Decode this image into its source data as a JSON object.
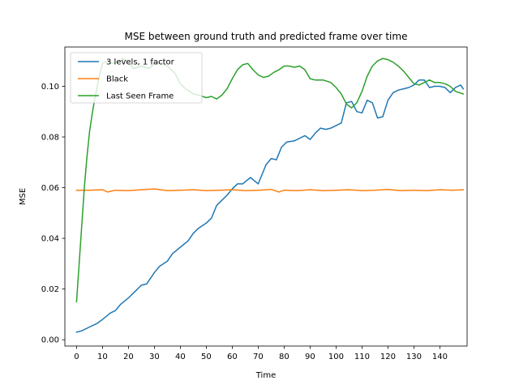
{
  "chart_data": {
    "type": "line",
    "title": "MSE between ground truth and predicted frame over time",
    "xlabel": "Time",
    "ylabel": "MSE",
    "xlim": [
      -4.5,
      150.5
    ],
    "ylim": [
      -0.0025,
      0.1155
    ],
    "xticks": [
      0,
      10,
      20,
      30,
      40,
      50,
      60,
      70,
      80,
      90,
      100,
      110,
      120,
      130,
      140
    ],
    "yticks": [
      0.0,
      0.02,
      0.04,
      0.06,
      0.08,
      0.1
    ],
    "ytick_labels": [
      "0.00",
      "0.02",
      "0.04",
      "0.06",
      "0.08",
      "0.10"
    ],
    "grid": false,
    "legend_position": "upper left",
    "series": [
      {
        "name": "3 levels, 1 factor",
        "color": "#1f77b4",
        "points": [
          [
            0,
            0.003
          ],
          [
            2,
            0.0035
          ],
          [
            5,
            0.005
          ],
          [
            8,
            0.0065
          ],
          [
            10,
            0.008
          ],
          [
            13,
            0.0105
          ],
          [
            15,
            0.0115
          ],
          [
            17,
            0.014
          ],
          [
            20,
            0.0165
          ],
          [
            23,
            0.0195
          ],
          [
            25,
            0.0215
          ],
          [
            27,
            0.022
          ],
          [
            30,
            0.0265
          ],
          [
            32,
            0.029
          ],
          [
            35,
            0.031
          ],
          [
            37,
            0.034
          ],
          [
            40,
            0.0365
          ],
          [
            43,
            0.039
          ],
          [
            45,
            0.042
          ],
          [
            47,
            0.044
          ],
          [
            50,
            0.046
          ],
          [
            52,
            0.048
          ],
          [
            54,
            0.053
          ],
          [
            56,
            0.055
          ],
          [
            58,
            0.057
          ],
          [
            60,
            0.0595
          ],
          [
            62,
            0.0615
          ],
          [
            64,
            0.0615
          ],
          [
            67,
            0.064
          ],
          [
            70,
            0.0615
          ],
          [
            73,
            0.069
          ],
          [
            75,
            0.0715
          ],
          [
            77,
            0.071
          ],
          [
            79,
            0.076
          ],
          [
            81,
            0.078
          ],
          [
            84,
            0.0785
          ],
          [
            86,
            0.0795
          ],
          [
            88,
            0.0805
          ],
          [
            90,
            0.079
          ],
          [
            92,
            0.0815
          ],
          [
            94,
            0.0835
          ],
          [
            96,
            0.083
          ],
          [
            98,
            0.0835
          ],
          [
            100,
            0.0845
          ],
          [
            102,
            0.0855
          ],
          [
            104,
            0.0935
          ],
          [
            106,
            0.094
          ],
          [
            108,
            0.09
          ],
          [
            110,
            0.0895
          ],
          [
            112,
            0.0945
          ],
          [
            114,
            0.0935
          ],
          [
            116,
            0.0875
          ],
          [
            118,
            0.088
          ],
          [
            120,
            0.0945
          ],
          [
            122,
            0.0975
          ],
          [
            124,
            0.0985
          ],
          [
            126,
            0.099
          ],
          [
            128,
            0.0995
          ],
          [
            130,
            0.1005
          ],
          [
            132,
            0.1025
          ],
          [
            134,
            0.1025
          ],
          [
            136,
            0.0995
          ],
          [
            138,
            0.1
          ],
          [
            140,
            0.1
          ],
          [
            142,
            0.0995
          ],
          [
            144,
            0.0975
          ],
          [
            146,
            0.0995
          ],
          [
            148,
            0.1005
          ],
          [
            149,
            0.099
          ]
        ]
      },
      {
        "name": "Black",
        "color": "#ff7f0e",
        "points": [
          [
            0,
            0.059
          ],
          [
            5,
            0.059
          ],
          [
            10,
            0.0592
          ],
          [
            12,
            0.0583
          ],
          [
            15,
            0.059
          ],
          [
            20,
            0.0588
          ],
          [
            25,
            0.0592
          ],
          [
            30,
            0.0595
          ],
          [
            35,
            0.0588
          ],
          [
            40,
            0.059
          ],
          [
            45,
            0.0592
          ],
          [
            50,
            0.0588
          ],
          [
            55,
            0.059
          ],
          [
            60,
            0.0592
          ],
          [
            65,
            0.0588
          ],
          [
            70,
            0.059
          ],
          [
            75,
            0.0593
          ],
          [
            78,
            0.0583
          ],
          [
            80,
            0.059
          ],
          [
            85,
            0.0588
          ],
          [
            90,
            0.0592
          ],
          [
            95,
            0.0588
          ],
          [
            100,
            0.059
          ],
          [
            105,
            0.0592
          ],
          [
            110,
            0.0588
          ],
          [
            115,
            0.059
          ],
          [
            120,
            0.0593
          ],
          [
            125,
            0.0588
          ],
          [
            130,
            0.059
          ],
          [
            135,
            0.0588
          ],
          [
            140,
            0.0592
          ],
          [
            145,
            0.059
          ],
          [
            149,
            0.0592
          ]
        ]
      },
      {
        "name": "Last Seen Frame",
        "color": "#2ca02c",
        "points": [
          [
            0,
            0.015
          ],
          [
            1,
            0.03
          ],
          [
            2,
            0.045
          ],
          [
            3,
            0.06
          ],
          [
            4,
            0.072
          ],
          [
            5,
            0.082
          ],
          [
            6,
            0.089
          ],
          [
            7,
            0.095
          ],
          [
            8,
            0.1
          ],
          [
            9,
            0.105
          ],
          [
            10,
            0.109
          ],
          [
            12,
            0.11
          ],
          [
            14,
            0.109
          ],
          [
            16,
            0.1095
          ],
          [
            18,
            0.111
          ],
          [
            20,
            0.1095
          ],
          [
            22,
            0.107
          ],
          [
            25,
            0.108
          ],
          [
            28,
            0.107
          ],
          [
            30,
            0.109
          ],
          [
            32,
            0.1095
          ],
          [
            35,
            0.108
          ],
          [
            38,
            0.105
          ],
          [
            40,
            0.101
          ],
          [
            42,
            0.099
          ],
          [
            45,
            0.097
          ],
          [
            47,
            0.0965
          ],
          [
            50,
            0.0955
          ],
          [
            52,
            0.096
          ],
          [
            54,
            0.095
          ],
          [
            56,
            0.0965
          ],
          [
            58,
            0.099
          ],
          [
            60,
            0.103
          ],
          [
            62,
            0.1065
          ],
          [
            64,
            0.1085
          ],
          [
            66,
            0.109
          ],
          [
            68,
            0.1065
          ],
          [
            70,
            0.1045
          ],
          [
            72,
            0.1035
          ],
          [
            74,
            0.104
          ],
          [
            76,
            0.1055
          ],
          [
            78,
            0.1065
          ],
          [
            80,
            0.108
          ],
          [
            82,
            0.108
          ],
          [
            84,
            0.1075
          ],
          [
            86,
            0.108
          ],
          [
            88,
            0.1065
          ],
          [
            90,
            0.103
          ],
          [
            92,
            0.1025
          ],
          [
            95,
            0.1025
          ],
          [
            98,
            0.1015
          ],
          [
            100,
            0.0995
          ],
          [
            102,
            0.097
          ],
          [
            104,
            0.093
          ],
          [
            106,
            0.0915
          ],
          [
            108,
            0.0935
          ],
          [
            110,
            0.098
          ],
          [
            112,
            0.104
          ],
          [
            114,
            0.108
          ],
          [
            116,
            0.11
          ],
          [
            118,
            0.111
          ],
          [
            120,
            0.1105
          ],
          [
            122,
            0.1095
          ],
          [
            124,
            0.108
          ],
          [
            126,
            0.106
          ],
          [
            128,
            0.1035
          ],
          [
            130,
            0.101
          ],
          [
            132,
            0.1005
          ],
          [
            134,
            0.1015
          ],
          [
            136,
            0.1025
          ],
          [
            138,
            0.1015
          ],
          [
            140,
            0.1015
          ],
          [
            142,
            0.101
          ],
          [
            144,
            0.1
          ],
          [
            146,
            0.098
          ],
          [
            149,
            0.097
          ]
        ]
      }
    ]
  }
}
